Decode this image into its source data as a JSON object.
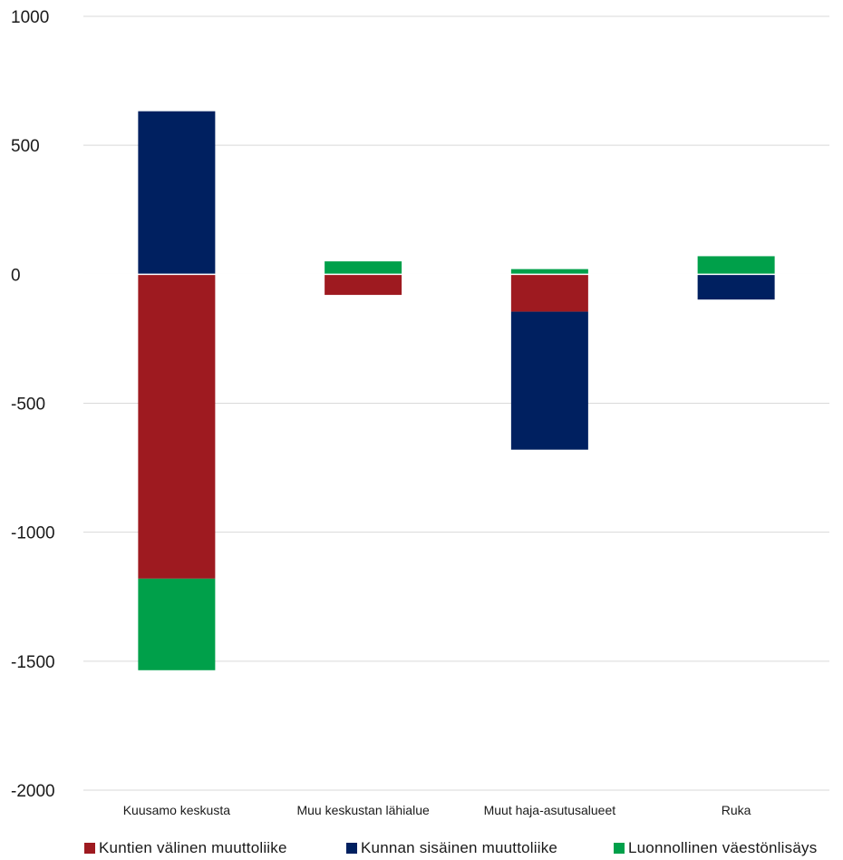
{
  "chart_data": {
    "type": "bar",
    "stacked": true,
    "categories": [
      "Kuusamo keskusta",
      "Muu keskustan lähialue",
      "Muut haja-asutusalueet",
      "Ruka"
    ],
    "series": [
      {
        "name": "Kuntien välinen muuttoliike",
        "color": "#9e1a20",
        "values": [
          -1180,
          -80,
          -145,
          0
        ]
      },
      {
        "name": "Kunnan sisäinen muuttoliike",
        "color": "#002060",
        "values": [
          632,
          0,
          -535,
          -98
        ]
      },
      {
        "name": "Luonnollinen väestönlisäys",
        "color": "#00a04a",
        "values": [
          -355,
          50,
          20,
          70
        ]
      }
    ],
    "ylim": [
      -2000,
      1000
    ],
    "yticks": [
      1000,
      500,
      0,
      -500,
      -1000,
      -1500,
      -2000
    ],
    "ytick_labels": [
      "1000",
      "500",
      "0",
      "-500",
      "-1000",
      "-1500",
      "-2000"
    ],
    "grid": true,
    "legend": "bottom"
  }
}
